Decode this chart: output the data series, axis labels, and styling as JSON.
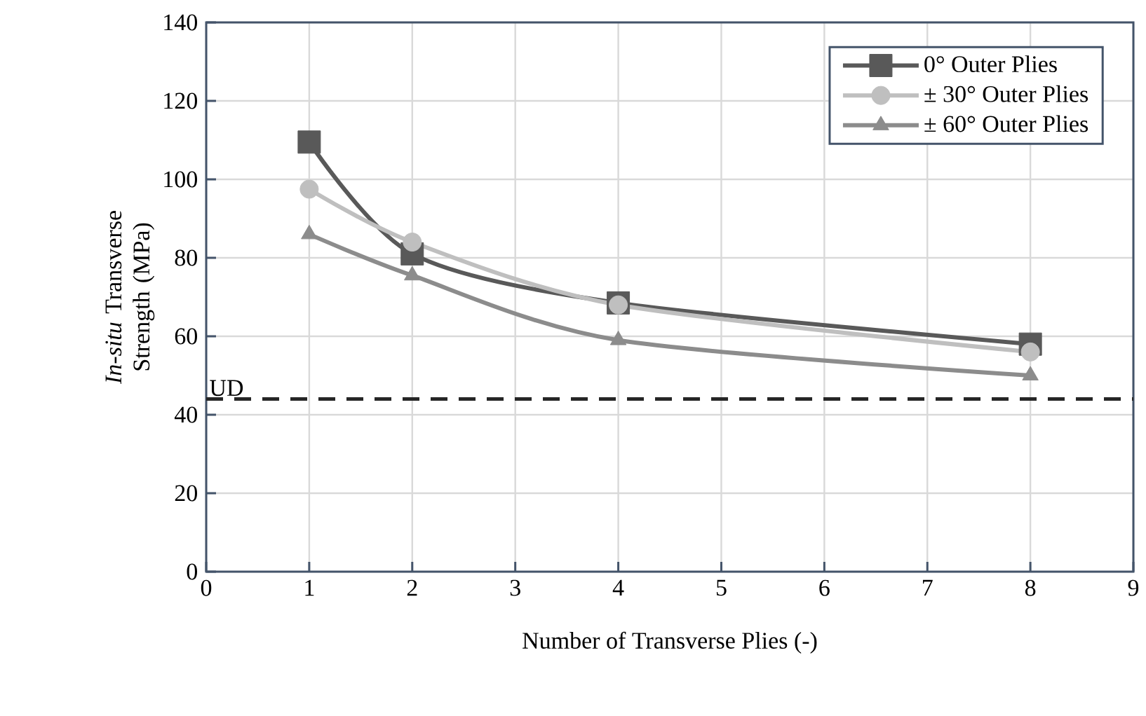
{
  "chart_data": {
    "type": "line",
    "xlabel": "Number of Transverse Plies (-)",
    "ylabel": "*In-situ* Transverse Strength (MPa)",
    "x": [
      1,
      2,
      4,
      8
    ],
    "series": [
      {
        "name": "0° Outer Plies",
        "color": "#595959",
        "marker": "square",
        "values": [
          109.5,
          81,
          68.5,
          58
        ]
      },
      {
        "name": "± 30° Outer Plies",
        "color": "#bfbfbf",
        "marker": "circle",
        "values": [
          97.5,
          84,
          68,
          56
        ]
      },
      {
        "name": "± 60° Outer Plies",
        "color": "#8c8c8c",
        "marker": "triangle",
        "values": [
          86,
          75.5,
          59,
          50
        ]
      }
    ],
    "xlim": [
      0,
      9
    ],
    "ylim": [
      0,
      140
    ],
    "xticks": [
      0,
      1,
      2,
      3,
      4,
      5,
      6,
      7,
      8,
      9
    ],
    "yticks": [
      0,
      20,
      40,
      60,
      80,
      100,
      120,
      140
    ],
    "ref_lines": [
      {
        "axis": "y",
        "value": 44,
        "label": "UD",
        "color": "#262626",
        "line_style": "dashed"
      }
    ],
    "grid": true,
    "legend": "top right",
    "line_style": "solid"
  }
}
